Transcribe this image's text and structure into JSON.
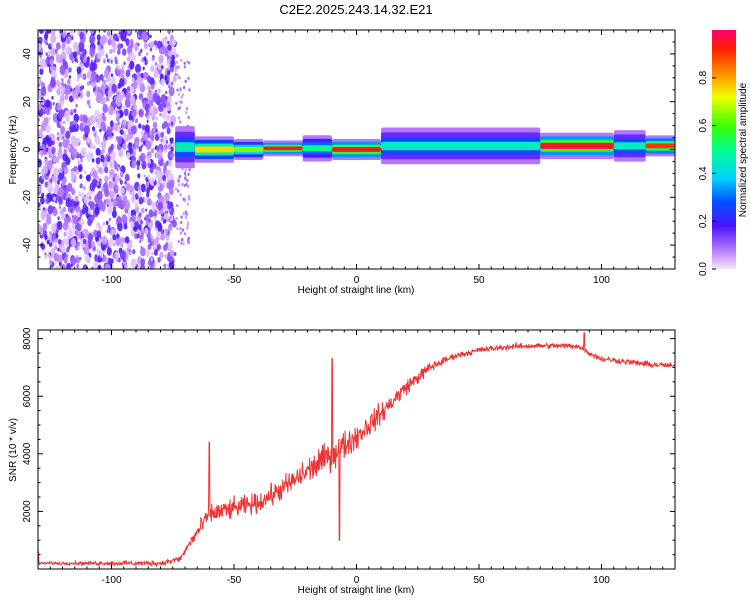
{
  "title": "C2E2.2025.243.14.32.E21",
  "chart_data": [
    {
      "type": "heatmap",
      "xlabel": "Height of straight line (km)",
      "ylabel": "Frequency (Hz)",
      "xlim": [
        -130,
        130
      ],
      "ylim": [
        -50,
        50
      ],
      "xticks": [
        -100,
        -50,
        0,
        50,
        100
      ],
      "yticks": [
        -40,
        -20,
        0,
        20,
        40
      ],
      "colorbar": {
        "label": "Normalized spectral amplitude",
        "range": [
          0,
          1
        ],
        "ticks": [
          "0.0",
          "0.2",
          "0.4",
          "0.6",
          "0.8"
        ],
        "tick_values": [
          0,
          0.2,
          0.4,
          0.6,
          0.8
        ]
      },
      "noise_region": {
        "x_from": -130,
        "x_to": -74,
        "freq_from": -50,
        "freq_to": 50,
        "amplitude": [
          0.02,
          0.2
        ]
      },
      "signal_band": [
        {
          "x_from": -74,
          "x_to": -66,
          "freq": 1,
          "half_width": 4,
          "peak": 0.45
        },
        {
          "x_from": -66,
          "x_to": -50,
          "freq": 0,
          "half_width": 2.5,
          "peak": 0.75
        },
        {
          "x_from": -50,
          "x_to": -38,
          "freq": 0,
          "half_width": 2,
          "peak": 0.65
        },
        {
          "x_from": -38,
          "x_to": -22,
          "freq": 0.5,
          "half_width": 1.5,
          "peak": 0.95
        },
        {
          "x_from": -22,
          "x_to": -10,
          "freq": 0.5,
          "half_width": 2.5,
          "peak": 0.5
        },
        {
          "x_from": -10,
          "x_to": 10,
          "freq": 0,
          "half_width": 2,
          "peak": 0.95
        },
        {
          "x_from": 10,
          "x_to": 75,
          "freq": 1.5,
          "half_width": 3.5,
          "peak": 0.45
        },
        {
          "x_from": 75,
          "x_to": 105,
          "freq": 1.5,
          "half_width": 2.5,
          "peak": 0.95
        },
        {
          "x_from": 105,
          "x_to": 118,
          "freq": 1.5,
          "half_width": 3,
          "peak": 0.45
        },
        {
          "x_from": 118,
          "x_to": 130,
          "freq": 1.5,
          "half_width": 2,
          "peak": 0.9
        }
      ]
    },
    {
      "type": "line",
      "xlabel": "Height of straight line (km)",
      "ylabel": "SNR (10 * v/v)",
      "xlim": [
        -130,
        130
      ],
      "ylim": [
        0,
        8300
      ],
      "xticks": [
        -100,
        -50,
        0,
        50,
        100
      ],
      "yticks": [
        2000,
        4000,
        6000,
        8000
      ],
      "color": "#ee3333",
      "envelope_x": [
        -130,
        -80,
        -72,
        -68,
        -60,
        -50,
        -40,
        -30,
        -20,
        -10,
        0,
        10,
        20,
        30,
        40,
        50,
        60,
        70,
        80,
        90,
        95,
        100,
        110,
        120,
        130
      ],
      "envelope_y": [
        200,
        200,
        350,
        900,
        1900,
        2100,
        2300,
        2800,
        3400,
        4000,
        4600,
        5400,
        6300,
        7000,
        7400,
        7600,
        7700,
        7750,
        7750,
        7750,
        7500,
        7300,
        7200,
        7100,
        7050
      ],
      "noise_x": [
        -130,
        -72,
        -60,
        -40,
        -10,
        20,
        40,
        130
      ],
      "noise_y": [
        60,
        150,
        550,
        500,
        800,
        400,
        150,
        150
      ],
      "spikes": [
        {
          "x": -60,
          "y": 4400
        },
        {
          "x": -10,
          "y": 7300
        },
        {
          "x": -7,
          "y": 1000
        },
        {
          "x": 93,
          "y": 8200
        },
        {
          "x": -130,
          "y": 600
        }
      ]
    }
  ]
}
